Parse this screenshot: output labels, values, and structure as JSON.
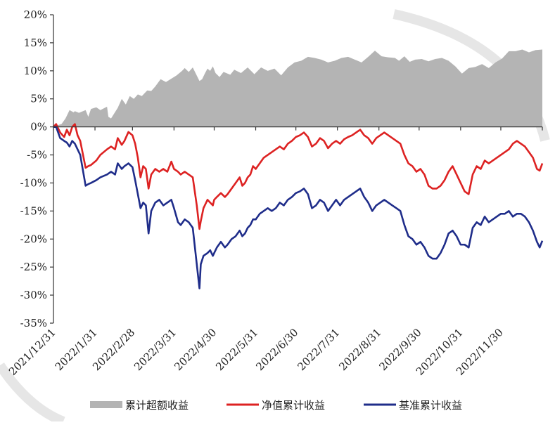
{
  "chart_data": {
    "type": "line",
    "title": "",
    "xlabel": "",
    "ylabel": "",
    "ylim": [
      -35,
      20
    ],
    "y_ticks": [
      20,
      15,
      10,
      5,
      0,
      -5,
      -10,
      -15,
      -20,
      -25,
      -30,
      -35
    ],
    "y_tick_labels": [
      "20%",
      "15%",
      "10%",
      "5%",
      "0%",
      "-5%",
      "-10%",
      "-15%",
      "-20%",
      "-25%",
      "-30%",
      "-35%"
    ],
    "x_tick_labels": [
      "2021/12/31",
      "2022/1/31",
      "2022/2/28",
      "2022/3/31",
      "2022/4/30",
      "2022/5/31",
      "2022/6/30",
      "2022/7/31",
      "2022/8/31",
      "2022/9/30",
      "2022/10/31",
      "2022/11/30"
    ],
    "x_tick_days": [
      0,
      31,
      59,
      90,
      120,
      151,
      181,
      212,
      243,
      273,
      304,
      334
    ],
    "x_range_days": [
      0,
      365
    ],
    "grid": false,
    "legend_position": "bottom",
    "series": [
      {
        "name": "累计超额收益",
        "kind": "area",
        "color": "#b4b4b4",
        "x": [
          0,
          3,
          6,
          9,
          12,
          15,
          16,
          19,
          24,
          26,
          28,
          32,
          35,
          40,
          41,
          43,
          48,
          51,
          54,
          57,
          60,
          63,
          66,
          70,
          73,
          76,
          80,
          84,
          88,
          92,
          96,
          98,
          101,
          104,
          109,
          111,
          113,
          115,
          117,
          119,
          121,
          124,
          127,
          132,
          135,
          140,
          145,
          150,
          155,
          160,
          165,
          170,
          175,
          180,
          185,
          190,
          195,
          200,
          205,
          210,
          215,
          220,
          225,
          230,
          235,
          240,
          245,
          250,
          255,
          258,
          262,
          266,
          270,
          275,
          280,
          285,
          290,
          295,
          300,
          305,
          310,
          315,
          320,
          325,
          330,
          335,
          340,
          345,
          350,
          355,
          360,
          365
        ],
        "y": [
          0,
          0.3,
          0.5,
          1.5,
          3.0,
          2.6,
          2.8,
          2.5,
          3.0,
          1.8,
          3.2,
          3.5,
          3.0,
          3.6,
          1.8,
          1.5,
          3.4,
          5.0,
          4.0,
          5.5,
          5.0,
          5.8,
          5.5,
          6.5,
          6.4,
          7.2,
          8.5,
          8.0,
          8.6,
          9.2,
          10.0,
          10.5,
          9.8,
          10.6,
          8.2,
          8.5,
          9.5,
          10.4,
          10.0,
          10.8,
          9.6,
          8.9,
          9.8,
          9.3,
          10.2,
          9.6,
          10.6,
          9.4,
          10.6,
          10.0,
          10.4,
          9.2,
          10.6,
          11.5,
          11.8,
          12.5,
          12.3,
          12.0,
          11.5,
          11.8,
          12.3,
          12.5,
          12.0,
          11.5,
          12.5,
          13.6,
          12.6,
          12.4,
          12.3,
          11.8,
          12.6,
          11.6,
          12.0,
          12.1,
          11.7,
          12.1,
          12.3,
          11.8,
          10.8,
          9.5,
          10.5,
          10.7,
          11.2,
          10.5,
          11.5,
          12.2,
          13.5,
          13.5,
          13.8,
          13.3,
          13.7,
          13.8
        ]
      },
      {
        "name": "净值累计收益",
        "kind": "line",
        "color": "#dd2222",
        "x": [
          0,
          2,
          5,
          8,
          10,
          12,
          14,
          16,
          18,
          20,
          24,
          26,
          28,
          32,
          35,
          40,
          43,
          46,
          48,
          51,
          53,
          56,
          59,
          61,
          63,
          65,
          67,
          69,
          71,
          73,
          76,
          79,
          82,
          85,
          88,
          90,
          93,
          95,
          98,
          101,
          104,
          107,
          109,
          110,
          112,
          115,
          117,
          119,
          120,
          122,
          125,
          128,
          130,
          133,
          136,
          139,
          141,
          143,
          145,
          147,
          149,
          151,
          154,
          157,
          160,
          163,
          166,
          169,
          172,
          175,
          178,
          181,
          184,
          187,
          190,
          193,
          196,
          199,
          202,
          205,
          208,
          211,
          214,
          217,
          220,
          223,
          226,
          229,
          232,
          235,
          238,
          241,
          244,
          247,
          250,
          253,
          256,
          259,
          262,
          265,
          268,
          271,
          274,
          277,
          280,
          283,
          286,
          289,
          292,
          295,
          298,
          301,
          304,
          307,
          310,
          313,
          316,
          319,
          322,
          325,
          328,
          331,
          334,
          337,
          340,
          343,
          346,
          349,
          352,
          355,
          358,
          361,
          363,
          365
        ],
        "y": [
          0,
          0.5,
          -1.0,
          -1.8,
          -0.5,
          -1.5,
          0,
          0.5,
          -1.5,
          -2.5,
          -7.3,
          -7.0,
          -6.8,
          -6.0,
          -5.0,
          -4.0,
          -3.5,
          -4.0,
          -2.0,
          -3.2,
          -2.5,
          -0.9,
          -1.5,
          -3.0,
          -5.5,
          -9.0,
          -7.0,
          -7.5,
          -11.0,
          -8.5,
          -7.5,
          -8.0,
          -7.5,
          -8.0,
          -6.2,
          -7.5,
          -8.0,
          -8.5,
          -8.0,
          -8.5,
          -9.0,
          -14.0,
          -18.2,
          -16.8,
          -14.5,
          -13.0,
          -13.5,
          -14.0,
          -13.0,
          -12.5,
          -11.8,
          -12.5,
          -12.0,
          -11.0,
          -10.0,
          -9.0,
          -10.5,
          -10.0,
          -9.0,
          -8.5,
          -7.0,
          -7.5,
          -6.5,
          -5.5,
          -5.0,
          -4.5,
          -4.0,
          -3.5,
          -4.0,
          -3.0,
          -2.5,
          -1.8,
          -1.5,
          -1.0,
          -1.8,
          -3.5,
          -3.0,
          -2.0,
          -2.5,
          -3.8,
          -3.0,
          -2.5,
          -3.0,
          -2.2,
          -1.8,
          -1.5,
          -1.0,
          -0.5,
          -1.5,
          -2.0,
          -3.0,
          -2.0,
          -1.5,
          -1.0,
          -1.5,
          -2.0,
          -2.5,
          -3.0,
          -5.0,
          -6.5,
          -7.0,
          -8.0,
          -7.5,
          -8.5,
          -10.5,
          -11.0,
          -11.0,
          -10.5,
          -9.5,
          -8.0,
          -7.0,
          -8.5,
          -10.0,
          -11.5,
          -12.0,
          -8.5,
          -7.0,
          -7.5,
          -6.0,
          -6.5,
          -6.0,
          -5.5,
          -5.0,
          -4.5,
          -4.0,
          -3.0,
          -2.5,
          -3.0,
          -3.5,
          -4.5,
          -5.5,
          -7.5,
          -7.8,
          -6.5
        ]
      },
      {
        "name": "基准累计收益",
        "kind": "line",
        "color": "#1f2d8a",
        "x": [
          0,
          2,
          5,
          8,
          10,
          12,
          14,
          16,
          18,
          20,
          24,
          26,
          28,
          32,
          35,
          40,
          43,
          46,
          48,
          51,
          53,
          56,
          59,
          61,
          63,
          65,
          67,
          69,
          71,
          73,
          76,
          79,
          82,
          85,
          88,
          90,
          93,
          95,
          98,
          101,
          104,
          107,
          109,
          110,
          112,
          115,
          117,
          119,
          120,
          122,
          125,
          128,
          130,
          133,
          136,
          139,
          141,
          143,
          145,
          147,
          149,
          151,
          154,
          157,
          160,
          163,
          166,
          169,
          172,
          175,
          178,
          181,
          184,
          187,
          190,
          193,
          196,
          199,
          202,
          205,
          208,
          211,
          214,
          217,
          220,
          223,
          226,
          229,
          232,
          235,
          238,
          241,
          244,
          247,
          250,
          253,
          256,
          259,
          262,
          265,
          268,
          271,
          274,
          277,
          280,
          283,
          286,
          289,
          292,
          295,
          298,
          301,
          304,
          307,
          310,
          313,
          316,
          319,
          322,
          325,
          328,
          331,
          334,
          337,
          340,
          343,
          346,
          349,
          352,
          355,
          358,
          361,
          363,
          365
        ],
        "y": [
          0,
          0,
          -2.0,
          -2.5,
          -2.8,
          -3.5,
          -2.5,
          -3.0,
          -4.0,
          -5.0,
          -10.5,
          -10.2,
          -10.0,
          -9.5,
          -9.0,
          -8.5,
          -8.0,
          -8.5,
          -6.5,
          -7.5,
          -7.0,
          -6.5,
          -7.2,
          -9.5,
          -12.0,
          -14.5,
          -13.5,
          -14.0,
          -19.0,
          -15.0,
          -13.5,
          -13.0,
          -14.0,
          -13.5,
          -13.0,
          -14.5,
          -17.0,
          -17.5,
          -16.5,
          -17.0,
          -18.0,
          -24.5,
          -28.8,
          -24.5,
          -23.0,
          -22.5,
          -22.0,
          -23.0,
          -22.5,
          -21.5,
          -20.5,
          -21.5,
          -21.0,
          -20.0,
          -19.5,
          -18.5,
          -19.5,
          -19.0,
          -18.0,
          -17.5,
          -16.5,
          -16.5,
          -15.5,
          -15.0,
          -14.5,
          -15.0,
          -14.5,
          -13.5,
          -14.0,
          -13.0,
          -12.5,
          -11.8,
          -11.5,
          -11.0,
          -12.0,
          -14.5,
          -14.0,
          -13.0,
          -13.5,
          -15.0,
          -14.0,
          -13.0,
          -14.0,
          -13.0,
          -12.5,
          -12.0,
          -11.5,
          -11.0,
          -12.5,
          -13.5,
          -15.0,
          -14.0,
          -13.5,
          -13.0,
          -13.5,
          -14.0,
          -14.5,
          -15.0,
          -17.5,
          -19.5,
          -20.0,
          -21.0,
          -20.5,
          -21.5,
          -23.0,
          -23.5,
          -23.5,
          -22.5,
          -21.0,
          -19.0,
          -18.5,
          -19.5,
          -21.0,
          -21.0,
          -21.5,
          -18.0,
          -17.0,
          -17.5,
          -16.0,
          -17.0,
          -16.5,
          -16.0,
          -15.5,
          -15.5,
          -15.0,
          -16.0,
          -15.5,
          -15.5,
          -16.0,
          -17.0,
          -18.5,
          -20.5,
          -21.5,
          -20.3
        ]
      }
    ]
  }
}
